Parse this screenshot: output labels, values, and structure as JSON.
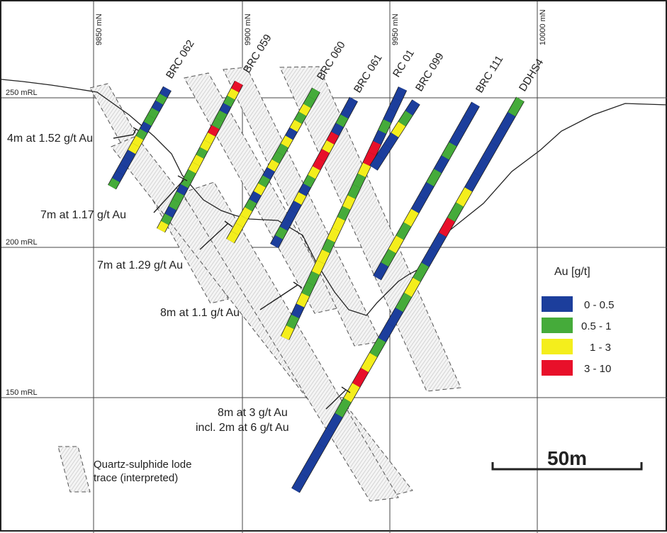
{
  "grid": {
    "northings": [
      "9850 mN",
      "9900 mN",
      "9950 mN",
      "10000 mN"
    ],
    "rls": [
      "250 mRL",
      "200 mRL",
      "150 mRL"
    ]
  },
  "holes": [
    {
      "name": "BRC 062",
      "grade": "0 - 0.5"
    },
    {
      "name": "BRC 059",
      "grade": "0 - 0.5"
    },
    {
      "name": "BRC 060",
      "grade": "0 - 0.5"
    },
    {
      "name": "BRC 061",
      "grade": "0 - 0.5"
    },
    {
      "name": "RC 01",
      "grade": "0 - 0.5"
    },
    {
      "name": "BRC 099",
      "grade": "0 - 0.5"
    },
    {
      "name": "BRC 111",
      "grade": "0 - 0.5"
    },
    {
      "name": "DDHS4",
      "grade": "0 - 0.5"
    }
  ],
  "intercepts": [
    {
      "line1": "4m at 1.52 g/t Au"
    },
    {
      "line1": "7m at 1.17 g/t Au"
    },
    {
      "line1": "7m at 1.29 g/t Au"
    },
    {
      "line1": "8m at 1.1 g/t Au"
    },
    {
      "line1": "8m at 3 g/t Au",
      "line2": "incl. 2m at 6 g/t Au"
    }
  ],
  "legend": {
    "title": "Au [g/t]",
    "items": [
      {
        "label": "0 - 0.5",
        "color": "#1c3e9c"
      },
      {
        "label": "0.5 - 1",
        "color": "#45ab3a"
      },
      {
        "label": "1 - 3",
        "color": "#f4ee1c"
      },
      {
        "label": "3 - 10",
        "color": "#e8102a"
      }
    ]
  },
  "lode_legend": {
    "line1": "Quartz-sulphide lode",
    "line2": "trace (interpreted)"
  },
  "scale_bar": {
    "label": "50m"
  }
}
